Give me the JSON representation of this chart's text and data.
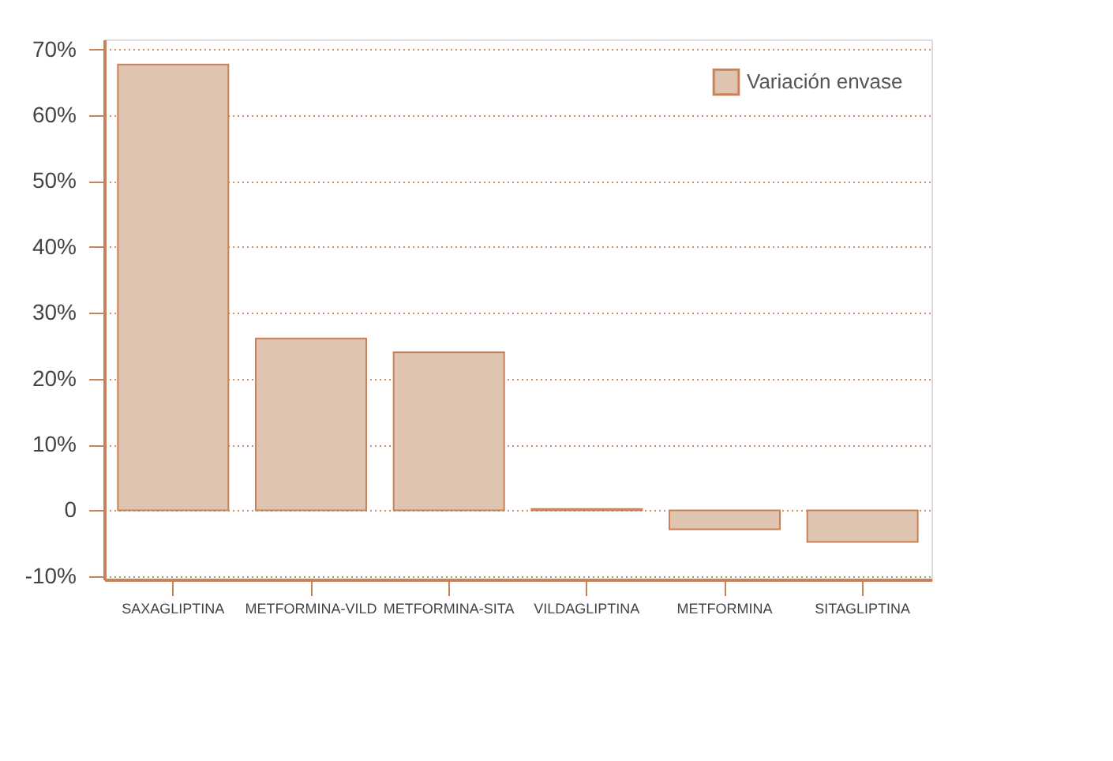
{
  "chart_data": {
    "type": "bar",
    "categories": [
      "SAXAGLIPTINA",
      "METFORMINA-VILD",
      "METFORMINA-SITA",
      "VILDAGLIPTINA",
      "METFORMINA",
      "SITAGLIPTINA"
    ],
    "series": [
      {
        "name": "Variación envase",
        "color": "#dfc5b1",
        "values": [
          67.7,
          26.1,
          24.0,
          0.2,
          -2.9,
          -4.8
        ]
      }
    ],
    "ylim": [
      -10.5,
      71.5
    ],
    "yticks": [
      {
        "value": -10,
        "label": "-10%"
      },
      0,
      {
        "value": 10,
        "label": "10%"
      },
      {
        "value": 20,
        "label": "20%"
      },
      {
        "value": 30,
        "label": "30%"
      },
      {
        "value": 40,
        "label": "40%"
      },
      {
        "value": 50,
        "label": "50%"
      },
      {
        "value": 60,
        "label": "60%"
      },
      {
        "value": 70,
        "label": "70%"
      }
    ],
    "grid": "y",
    "legend": "top right"
  }
}
